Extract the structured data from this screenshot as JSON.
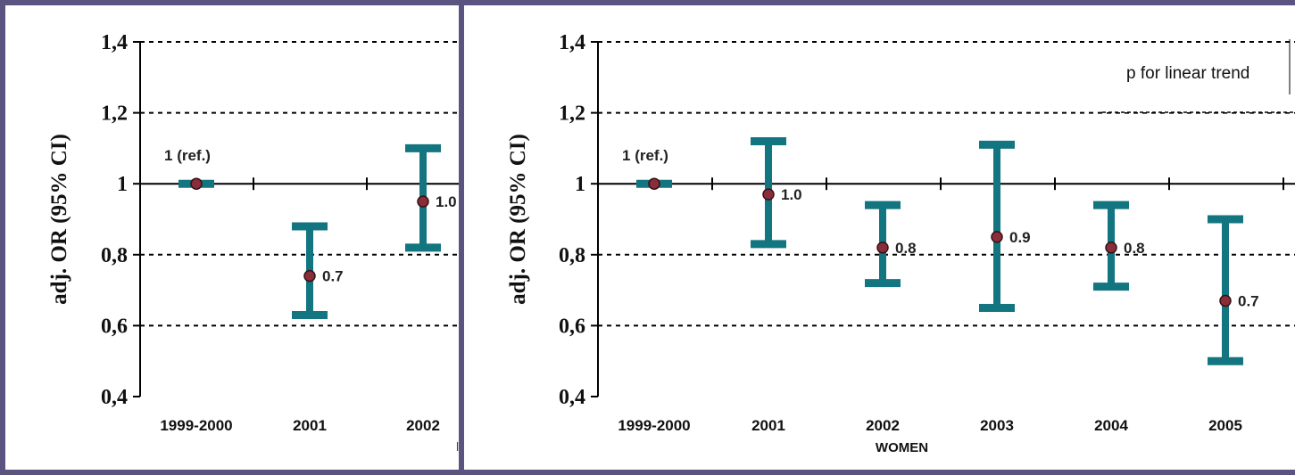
{
  "chart_data": [
    {
      "type": "errorbar",
      "title": "",
      "xlabel": "",
      "ylabel": "adj. OR (95% CI)",
      "ylim": [
        0.4,
        1.4
      ],
      "yticks": [
        "0,4",
        "0,6",
        "0,8",
        "1",
        "1,2",
        "1,4"
      ],
      "categories": [
        "1999-2000",
        "2001",
        "2002"
      ],
      "points": [
        {
          "category": "1999-2000",
          "value": 1.0,
          "low": 1.0,
          "high": 1.0,
          "label": "1 (ref.)"
        },
        {
          "category": "2001",
          "value": 0.74,
          "low": 0.63,
          "high": 0.88,
          "label": "0.7"
        },
        {
          "category": "2002",
          "value": 0.95,
          "low": 0.82,
          "high": 1.1,
          "label": "1.0"
        }
      ],
      "stray_text": "l"
    },
    {
      "type": "errorbar",
      "title": "",
      "xlabel": "WOMEN",
      "ylabel": "adj. OR (95% CI)",
      "ylim": [
        0.4,
        1.4
      ],
      "yticks": [
        "0,4",
        "0,6",
        "0,8",
        "1",
        "1,2",
        "1,4"
      ],
      "categories": [
        "1999-2000",
        "2001",
        "2002",
        "2003",
        "2004",
        "2005"
      ],
      "points": [
        {
          "category": "1999-2000",
          "value": 1.0,
          "low": 1.0,
          "high": 1.0,
          "label": "1 (ref.)"
        },
        {
          "category": "2001",
          "value": 0.97,
          "low": 0.83,
          "high": 1.12,
          "label": "1.0"
        },
        {
          "category": "2002",
          "value": 0.82,
          "low": 0.72,
          "high": 0.94,
          "label": "0.8"
        },
        {
          "category": "2003",
          "value": 0.85,
          "low": 0.65,
          "high": 1.11,
          "label": "0.9"
        },
        {
          "category": "2004",
          "value": 0.82,
          "low": 0.71,
          "high": 0.94,
          "label": "0.8"
        },
        {
          "category": "2005",
          "value": 0.67,
          "low": 0.5,
          "high": 0.9,
          "label": "0.7"
        }
      ],
      "annotation": "p for linear trend"
    }
  ],
  "colors": {
    "errorbar": "#127580",
    "point_fill": "#8a2d3b",
    "point_stroke": "#3a1015",
    "background": "#5b5380",
    "panel": "#ffffff"
  }
}
